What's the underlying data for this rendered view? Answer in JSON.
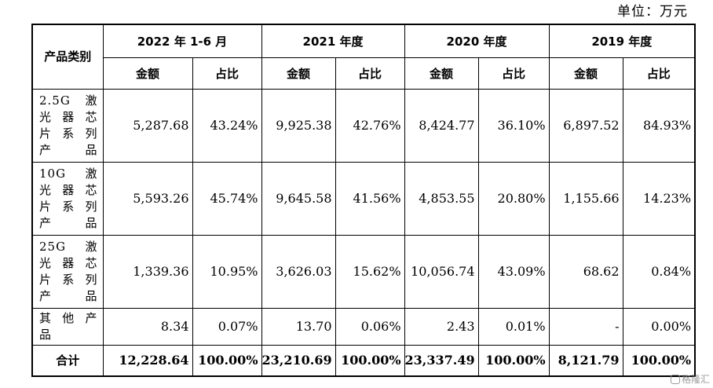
{
  "unit_label": "单位：万元",
  "header": {
    "category": "产品类别",
    "periods": [
      "2022 年 1-6 月",
      "2021 年度",
      "2020 年度",
      "2019 年度"
    ],
    "amount": "金额",
    "ratio": "占比"
  },
  "rows": [
    {
      "lines": [
        "2.5G 激",
        "光 器 芯",
        "片 系 列",
        "产品"
      ],
      "values": [
        "5,287.68",
        "43.24%",
        "9,925.38",
        "42.76%",
        "8,424.77",
        "36.10%",
        "6,897.52",
        "84.93%"
      ]
    },
    {
      "lines": [
        "10G 激",
        "光 器 芯",
        "片 系 列",
        "产品"
      ],
      "values": [
        "5,593.26",
        "45.74%",
        "9,645.58",
        "41.56%",
        "4,853.55",
        "20.80%",
        "1,155.66",
        "14.23%"
      ]
    },
    {
      "lines": [
        "25G 激",
        "光 器 芯",
        "片 系 列",
        "产品"
      ],
      "values": [
        "1,339.36",
        "10.95%",
        "3,626.03",
        "15.62%",
        "10,056.74",
        "43.09%",
        "68.62",
        "0.84%"
      ]
    },
    {
      "lines": [
        "其 他 产",
        "品"
      ],
      "values": [
        "8.34",
        "0.07%",
        "13.70",
        "0.06%",
        "2.43",
        "0.01%",
        "-",
        "0.00%"
      ]
    }
  ],
  "total": {
    "label": "合计",
    "values": [
      "12,228.64",
      "100.00%",
      "23,210.69",
      "100.00%",
      "23,337.49",
      "100.00%",
      "8,121.79",
      "100.00%"
    ]
  },
  "watermark": "格隆汇"
}
